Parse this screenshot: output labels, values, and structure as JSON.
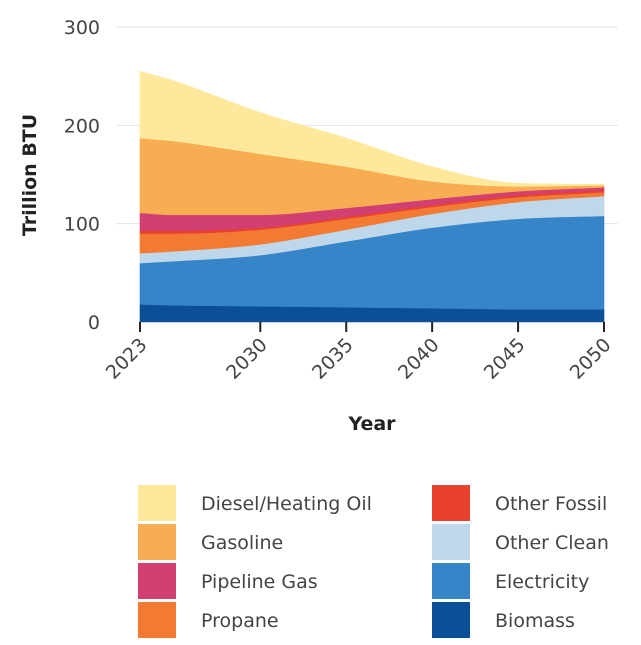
{
  "chart_data": {
    "type": "area",
    "stacked": true,
    "title": "",
    "xlabel": "Year",
    "ylabel": "Trillion BTU",
    "x": [
      2023,
      2025,
      2030,
      2035,
      2040,
      2045,
      2050
    ],
    "xticks": [
      "2023",
      "2030",
      "2035",
      "2040",
      "2045",
      "2050"
    ],
    "yticks": [
      "0",
      "100",
      "200",
      "300"
    ],
    "ylim": [
      0,
      300
    ],
    "grid": "horizontal",
    "legend_position": "bottom",
    "series": [
      {
        "name": "Biomass",
        "color": "#0b4f96",
        "values": [
          18,
          17,
          16,
          15,
          14,
          13,
          13
        ]
      },
      {
        "name": "Electricity",
        "color": "#3585c8",
        "values": [
          42,
          45,
          52,
          67,
          82,
          92,
          95
        ]
      },
      {
        "name": "Other Clean",
        "color": "#bfd7ea",
        "values": [
          10,
          10,
          11,
          12,
          14,
          17,
          20
        ]
      },
      {
        "name": "Propane",
        "color": "#f27a32",
        "values": [
          20,
          18,
          15,
          11,
          7,
          5,
          4
        ]
      },
      {
        "name": "Other Fossil",
        "color": "#e8412f",
        "values": [
          3,
          3,
          2,
          2,
          2,
          2,
          2
        ]
      },
      {
        "name": "Pipeline Gas",
        "color": "#d23f73",
        "values": [
          18,
          16,
          13,
          9,
          6,
          4,
          3
        ]
      },
      {
        "name": "Gasoline",
        "color": "#f9ad52",
        "values": [
          76,
          75,
          62,
          42,
          18,
          5,
          2
        ]
      },
      {
        "name": "Diesel/Heating Oil",
        "color": "#fde89b",
        "values": [
          68,
          61,
          42,
          29,
          15,
          3,
          1
        ]
      }
    ],
    "legend_order": [
      "Diesel/Heating Oil",
      "Gasoline",
      "Pipeline Gas",
      "Propane",
      "Other Fossil",
      "Other Clean",
      "Electricity",
      "Biomass"
    ]
  }
}
